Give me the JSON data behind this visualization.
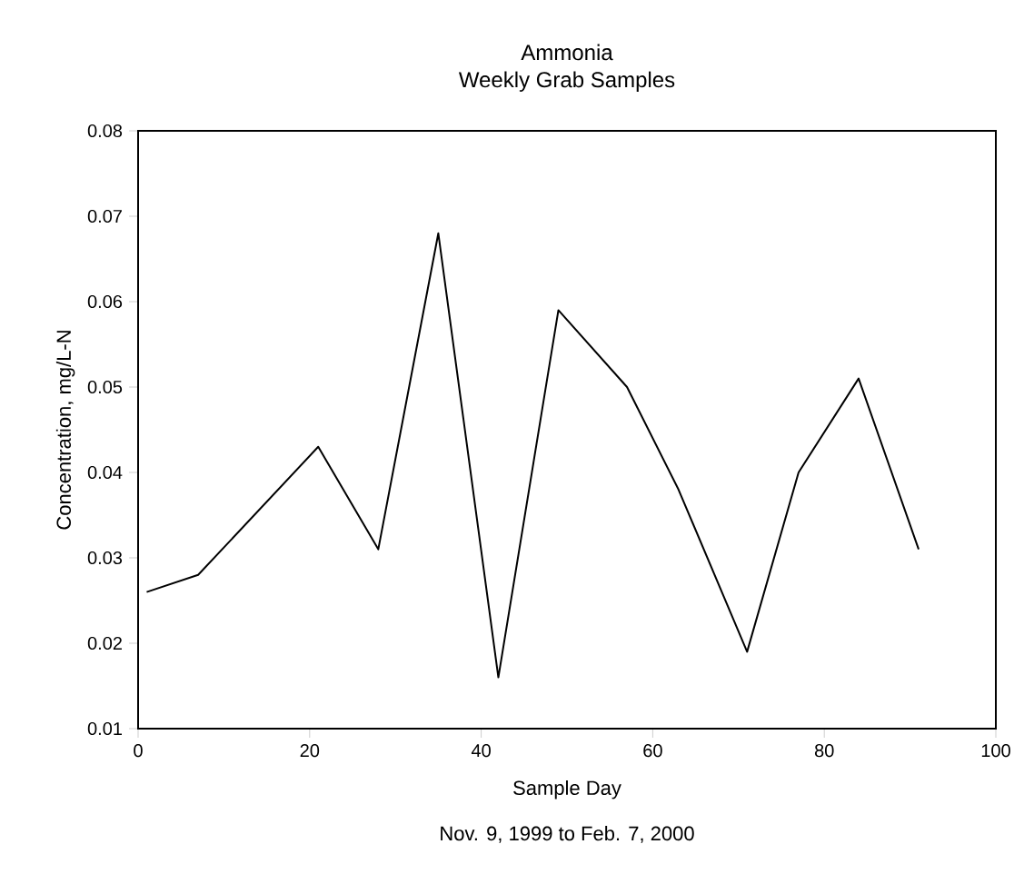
{
  "chart_data": {
    "type": "line",
    "title": "Ammonia",
    "subtitle": "Weekly Grab Samples",
    "xlabel": "Sample Day",
    "ylabel": "Concentration,  mg/L-N",
    "annotations": [
      "Nov. 9, 1999 to Feb. 7, 2000"
    ],
    "x": [
      1,
      7,
      21,
      28,
      35,
      42,
      49,
      57,
      63,
      71,
      77,
      84,
      91
    ],
    "values": [
      0.026,
      0.028,
      0.043,
      0.031,
      0.068,
      0.016,
      0.059,
      0.05,
      0.038,
      0.019,
      0.04,
      0.051,
      0.031
    ],
    "color": "#000000",
    "xlim": [
      0,
      100
    ],
    "xticks": [
      0,
      20,
      40,
      60,
      80,
      100
    ],
    "ylim": [
      0.01,
      0.08
    ],
    "yticks": [
      0.01,
      0.02,
      0.03,
      0.04,
      0.05,
      0.06,
      0.07,
      0.08
    ],
    "grid": false,
    "marker": "none",
    "line_style": "solid"
  }
}
